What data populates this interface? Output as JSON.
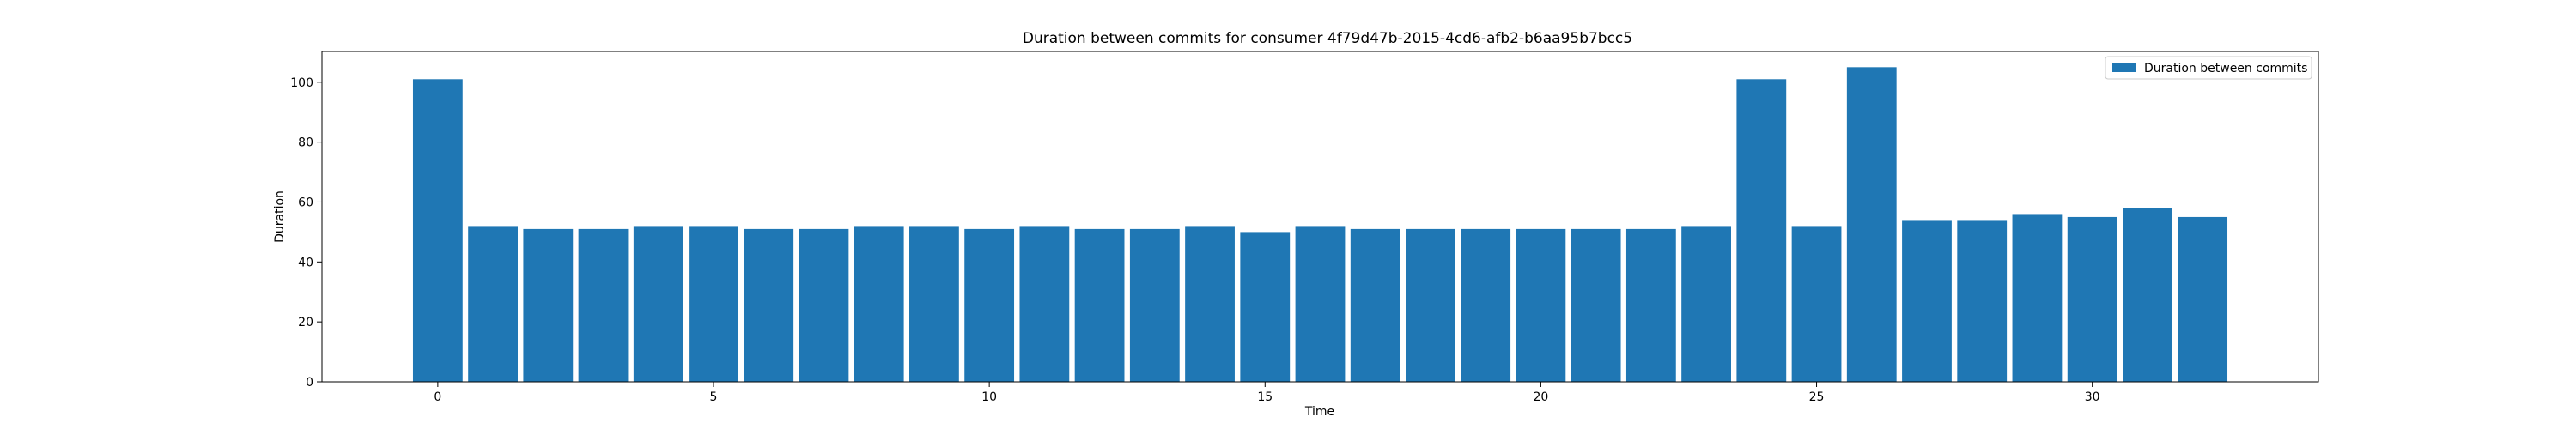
{
  "chart_data": {
    "type": "bar",
    "title": "Duration between commits for consumer 4f79d47b-2015-4cd6-afb2-b6aa95b7bcc5",
    "xlabel": "Time",
    "ylabel": "Duration",
    "x": [
      0,
      1,
      2,
      3,
      4,
      5,
      6,
      7,
      8,
      9,
      10,
      11,
      12,
      13,
      14,
      15,
      16,
      17,
      18,
      19,
      20,
      21,
      22,
      23,
      24,
      25,
      26,
      27,
      28,
      29,
      30,
      31,
      32
    ],
    "series": [
      {
        "name": "Duration between commits",
        "values": [
          101,
          52,
          51,
          51,
          52,
          52,
          51,
          51,
          52,
          52,
          51,
          52,
          51,
          51,
          52,
          50,
          52,
          51,
          51,
          51,
          51,
          51,
          51,
          52,
          101,
          52,
          105,
          54,
          54,
          56,
          55,
          58,
          55
        ]
      }
    ],
    "xlim": [
      -2.1,
      34.1
    ],
    "ylim": [
      0,
      110.25
    ],
    "xticks": [
      0,
      5,
      10,
      15,
      20,
      25,
      30
    ],
    "yticks": [
      0,
      20,
      40,
      60,
      80,
      100
    ],
    "legend_position": "upper right",
    "grid": false,
    "bar_color": "#1f77b4"
  }
}
